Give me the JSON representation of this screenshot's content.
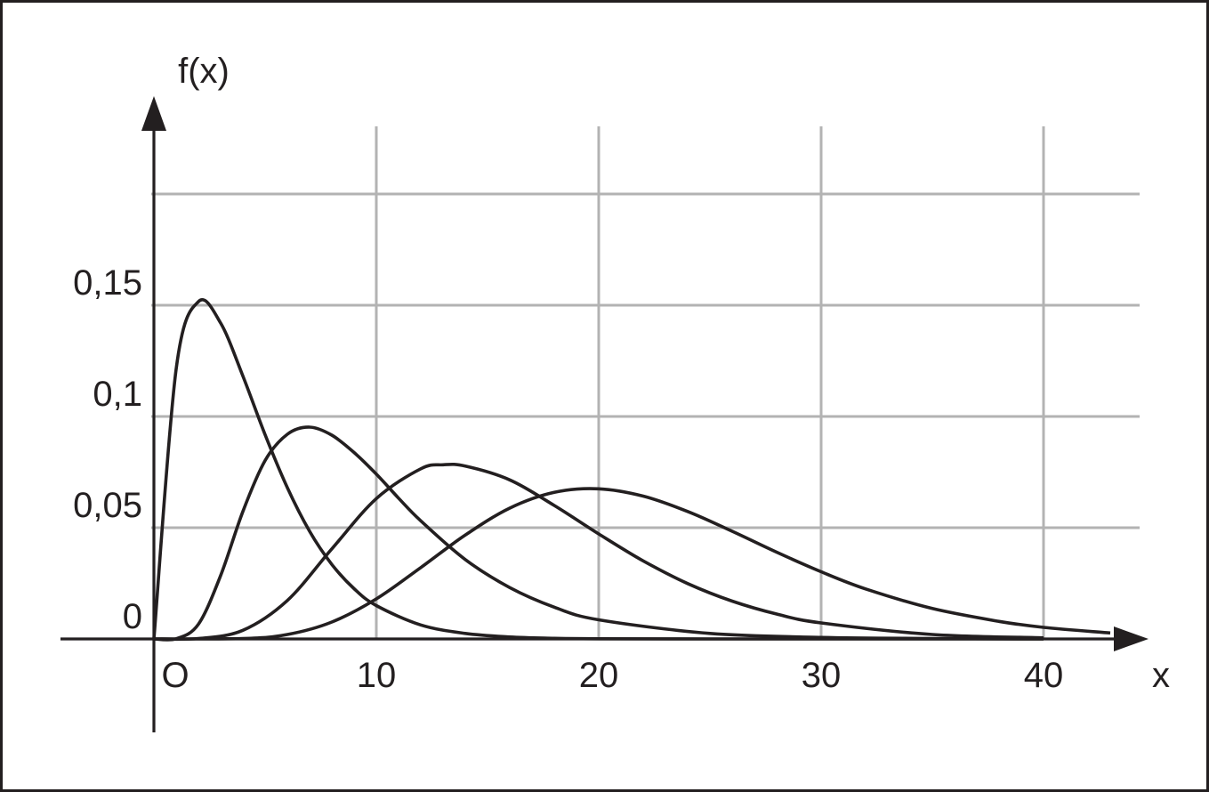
{
  "chart_data": {
    "type": "line",
    "title": "",
    "xlabel": "x",
    "ylabel": "f(x)",
    "origin_label": "O",
    "xlim": [
      -4,
      44
    ],
    "ylim": [
      -0.0425,
      0.2
    ],
    "x_ticks": [
      10,
      20,
      30,
      40
    ],
    "x_tick_labels": [
      "10",
      "20",
      "30",
      "40"
    ],
    "y_ticks": [
      0,
      0.05,
      0.1,
      0.15
    ],
    "y_tick_labels": [
      "0",
      "0,05",
      "0,1",
      "0,15"
    ],
    "y_grid_extra": [
      0.2
    ],
    "grid": true,
    "legend": "none",
    "series": [
      {
        "x": [
          0,
          1,
          2,
          3,
          4,
          5,
          6,
          7,
          8,
          9,
          10,
          12,
          14,
          16,
          18,
          20,
          25,
          30,
          40
        ],
        "values": [
          0,
          0.1213,
          0.1516,
          0.142,
          0.1182,
          0.0918,
          0.068,
          0.0484,
          0.0335,
          0.0226,
          0.015,
          0.0063,
          0.0025,
          0.0009,
          0.0003,
          0.0001,
          0,
          0,
          0
        ]
      },
      {
        "x": [
          0,
          1,
          2,
          3,
          4,
          5,
          6,
          7,
          8,
          9,
          10,
          11,
          12,
          14,
          16,
          18,
          20,
          25,
          30,
          35,
          40
        ],
        "values": [
          0,
          0.0001,
          0.0066,
          0.0285,
          0.0573,
          0.0802,
          0.092,
          0.0952,
          0.0916,
          0.0838,
          0.0741,
          0.0633,
          0.0531,
          0.0357,
          0.0231,
          0.0143,
          0.0086,
          0.0025,
          0.0007,
          0.0002,
          0
        ]
      },
      {
        "x": [
          0,
          2,
          4,
          6,
          8,
          10,
          12,
          13,
          14,
          16,
          18,
          20,
          22,
          24,
          26,
          28,
          30,
          35,
          40
        ],
        "values": [
          0,
          0.0002,
          0.0039,
          0.0173,
          0.0405,
          0.0631,
          0.0765,
          0.0783,
          0.0777,
          0.0715,
          0.06,
          0.0472,
          0.0351,
          0.0249,
          0.017,
          0.0112,
          0.0072,
          0.002,
          0.0005
        ]
      },
      {
        "x": [
          0,
          4,
          6,
          8,
          10,
          12,
          14,
          16,
          18,
          20,
          22,
          24,
          26,
          28,
          30,
          32,
          35,
          38,
          40,
          43
        ],
        "values": [
          0,
          0.0002,
          0.002,
          0.0076,
          0.018,
          0.0321,
          0.0467,
          0.0588,
          0.0659,
          0.0675,
          0.0642,
          0.0573,
          0.0484,
          0.039,
          0.0302,
          0.0225,
          0.0137,
          0.0079,
          0.0052,
          0.0027
        ]
      }
    ]
  }
}
